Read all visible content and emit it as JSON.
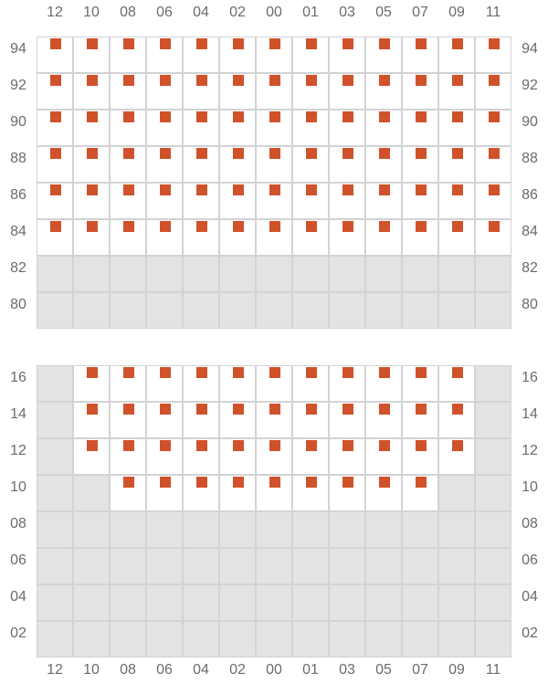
{
  "colors": {
    "marker": "#d0522b",
    "available": "#ffffff",
    "unavailable": "#e3e3e6",
    "border": "#d3d3d6"
  },
  "columns": [
    "12",
    "10",
    "08",
    "06",
    "04",
    "02",
    "00",
    "01",
    "03",
    "05",
    "07",
    "09",
    "11"
  ],
  "grids": [
    {
      "rows": [
        {
          "label": "94",
          "cells": [
            1,
            1,
            1,
            1,
            1,
            1,
            1,
            1,
            1,
            1,
            1,
            1,
            1
          ]
        },
        {
          "label": "92",
          "cells": [
            1,
            1,
            1,
            1,
            1,
            1,
            1,
            1,
            1,
            1,
            1,
            1,
            1
          ]
        },
        {
          "label": "90",
          "cells": [
            1,
            1,
            1,
            1,
            1,
            1,
            1,
            1,
            1,
            1,
            1,
            1,
            1
          ]
        },
        {
          "label": "88",
          "cells": [
            1,
            1,
            1,
            1,
            1,
            1,
            1,
            1,
            1,
            1,
            1,
            1,
            1
          ]
        },
        {
          "label": "86",
          "cells": [
            1,
            1,
            1,
            1,
            1,
            1,
            1,
            1,
            1,
            1,
            1,
            1,
            1
          ]
        },
        {
          "label": "84",
          "cells": [
            1,
            1,
            1,
            1,
            1,
            1,
            1,
            1,
            1,
            1,
            1,
            1,
            1
          ]
        },
        {
          "label": "82",
          "cells": [
            0,
            0,
            0,
            0,
            0,
            0,
            0,
            0,
            0,
            0,
            0,
            0,
            0
          ]
        },
        {
          "label": "80",
          "cells": [
            0,
            0,
            0,
            0,
            0,
            0,
            0,
            0,
            0,
            0,
            0,
            0,
            0
          ]
        }
      ]
    },
    {
      "rows": [
        {
          "label": "16",
          "cells": [
            0,
            1,
            1,
            1,
            1,
            1,
            1,
            1,
            1,
            1,
            1,
            1,
            0
          ]
        },
        {
          "label": "14",
          "cells": [
            0,
            1,
            1,
            1,
            1,
            1,
            1,
            1,
            1,
            1,
            1,
            1,
            0
          ]
        },
        {
          "label": "12",
          "cells": [
            0,
            1,
            1,
            1,
            1,
            1,
            1,
            1,
            1,
            1,
            1,
            1,
            0
          ]
        },
        {
          "label": "10",
          "cells": [
            0,
            0,
            1,
            1,
            1,
            1,
            1,
            1,
            1,
            1,
            1,
            0,
            0
          ]
        },
        {
          "label": "08",
          "cells": [
            0,
            0,
            0,
            0,
            0,
            0,
            0,
            0,
            0,
            0,
            0,
            0,
            0
          ]
        },
        {
          "label": "06",
          "cells": [
            0,
            0,
            0,
            0,
            0,
            0,
            0,
            0,
            0,
            0,
            0,
            0,
            0
          ]
        },
        {
          "label": "04",
          "cells": [
            0,
            0,
            0,
            0,
            0,
            0,
            0,
            0,
            0,
            0,
            0,
            0,
            0
          ]
        },
        {
          "label": "02",
          "cells": [
            0,
            0,
            0,
            0,
            0,
            0,
            0,
            0,
            0,
            0,
            0,
            0,
            0
          ]
        }
      ]
    }
  ]
}
